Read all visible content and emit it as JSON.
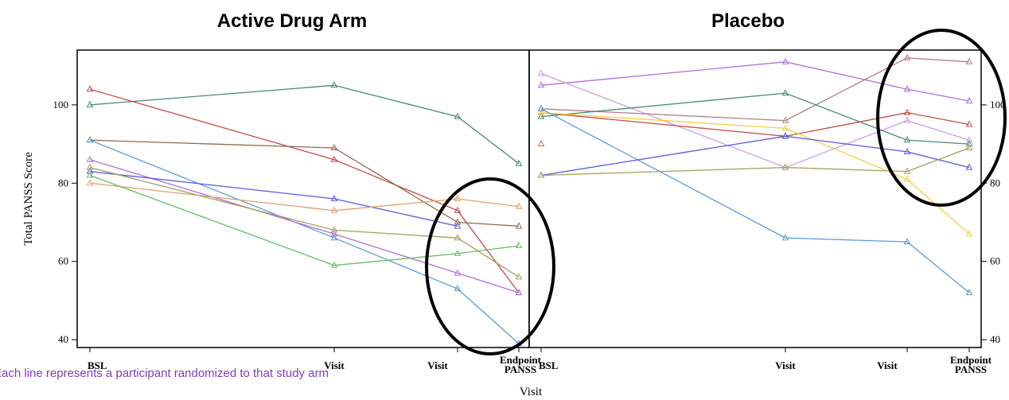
{
  "chart_data": {
    "type": "line",
    "ylabel": "Total PANSS Score",
    "xlabel": "Visit",
    "ylim": [
      38,
      114
    ],
    "yticks": [
      40,
      60,
      80,
      100
    ],
    "x_categories": [
      "BSL",
      "Visit",
      "Visit",
      "Endpoint PANSS"
    ],
    "note": "Each line represents a participant randomized to that study arm",
    "panels": [
      {
        "title": "Active Drug Arm",
        "series": [
          {
            "color": "#4a8a73",
            "values": [
              100,
              105,
              97,
              85
            ]
          },
          {
            "color": "#c0504d",
            "values": [
              104,
              86,
              73,
              52
            ]
          },
          {
            "color": "#8b6b4e",
            "values": [
              91,
              89,
              70,
              69
            ]
          },
          {
            "color": "#5b9bd5",
            "values": [
              91,
              66,
              53,
              39
            ]
          },
          {
            "color": "#b070d6",
            "values": [
              86,
              67,
              57,
              52
            ]
          },
          {
            "color": "#5a5ad8",
            "values": [
              83,
              76,
              69,
              null
            ]
          },
          {
            "color": "#e0a070",
            "values": [
              80,
              73,
              76,
              74
            ]
          },
          {
            "color": "#a0a060",
            "values": [
              84,
              68,
              66,
              56
            ]
          },
          {
            "color": "#66bb66",
            "values": [
              82,
              59,
              62,
              64
            ]
          }
        ]
      },
      {
        "title": "Placebo",
        "series": [
          {
            "color": "#b070d6",
            "values": [
              105,
              111,
              104,
              101
            ]
          },
          {
            "color": "#c8a0e8",
            "values": [
              108,
              84,
              96,
              91
            ]
          },
          {
            "color": "#b08080",
            "values": [
              99,
              96,
              112,
              111
            ]
          },
          {
            "color": "#4a8a73",
            "values": [
              97,
              103,
              91,
              90
            ]
          },
          {
            "color": "#c0504d",
            "values": [
              98,
              92,
              98,
              95
            ]
          },
          {
            "color": "#f5d040",
            "values": [
              98,
              94,
              81,
              67
            ]
          },
          {
            "color": "#5b9bd5",
            "values": [
              99,
              66,
              65,
              52
            ]
          },
          {
            "color": "#5a5ad8",
            "values": [
              82,
              92,
              88,
              84
            ]
          },
          {
            "color": "#a0a060",
            "values": [
              82,
              84,
              83,
              89
            ]
          },
          {
            "color": "#c0704d",
            "values": [
              90,
              null,
              null,
              null
            ]
          }
        ]
      }
    ]
  }
}
